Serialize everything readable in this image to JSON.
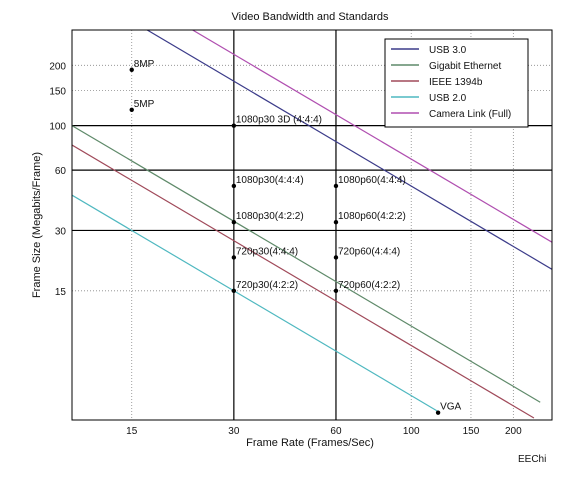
{
  "chart_data": {
    "type": "line",
    "title": "Video Bandwidth and Standards",
    "xlabel": "Frame Rate (Frames/Sec)",
    "ylabel": "Frame Size (Megabits/Frame)",
    "x_scale": "log",
    "y_scale": "log",
    "xlim": [
      10,
      260
    ],
    "ylim": [
      3.4,
      300
    ],
    "x_ticks": [
      15,
      30,
      60,
      100,
      150,
      200
    ],
    "y_ticks": [
      15,
      30,
      60,
      100,
      150,
      200
    ],
    "grid": "dotted minor + solid major at 30, 60 (x) and 30, 60, 100 (y)",
    "legend_position": "top-right",
    "series": [
      {
        "name": "USB 3.0",
        "color": "#3c3c8a",
        "x": [
          10,
          260
        ],
        "y": [
          500,
          19.2
        ]
      },
      {
        "name": "Gigabit Ethernet",
        "color": "#5f8a6a",
        "x": [
          10,
          240
        ],
        "y": [
          100,
          4.17
        ]
      },
      {
        "name": "IEEE 1394b",
        "color": "#a04a5a",
        "x": [
          10,
          230
        ],
        "y": [
          80,
          3.48
        ]
      },
      {
        "name": "USB 2.0",
        "color": "#4fb8c0",
        "x": [
          10,
          120
        ],
        "y": [
          45,
          3.75
        ]
      },
      {
        "name": "Camera Link (Full)",
        "color": "#b04fb0",
        "x": [
          10,
          260
        ],
        "y": [
          680,
          26.2
        ]
      }
    ],
    "points": [
      {
        "label": "8MP",
        "x": 15,
        "y": 190
      },
      {
        "label": "5MP",
        "x": 15,
        "y": 120
      },
      {
        "label": "1080p30 3D (4:4:4)",
        "x": 30,
        "y": 100
      },
      {
        "label": "1080p30(4:4:4)",
        "x": 30,
        "y": 50
      },
      {
        "label": "1080p60(4:4:4)",
        "x": 60,
        "y": 50
      },
      {
        "label": "1080p30(4:2:2)",
        "x": 30,
        "y": 33
      },
      {
        "label": "1080p60(4:2:2)",
        "x": 60,
        "y": 33
      },
      {
        "label": "720p30(4:4:4)",
        "x": 30,
        "y": 22
      },
      {
        "label": "720p60(4:4:4)",
        "x": 60,
        "y": 22
      },
      {
        "label": "720p30(4:2:2)",
        "x": 30,
        "y": 15
      },
      {
        "label": "720p60(4:2:2)",
        "x": 60,
        "y": 15
      },
      {
        "label": "VGA",
        "x": 120,
        "y": 3.7
      }
    ]
  },
  "watermark": "EEChi"
}
